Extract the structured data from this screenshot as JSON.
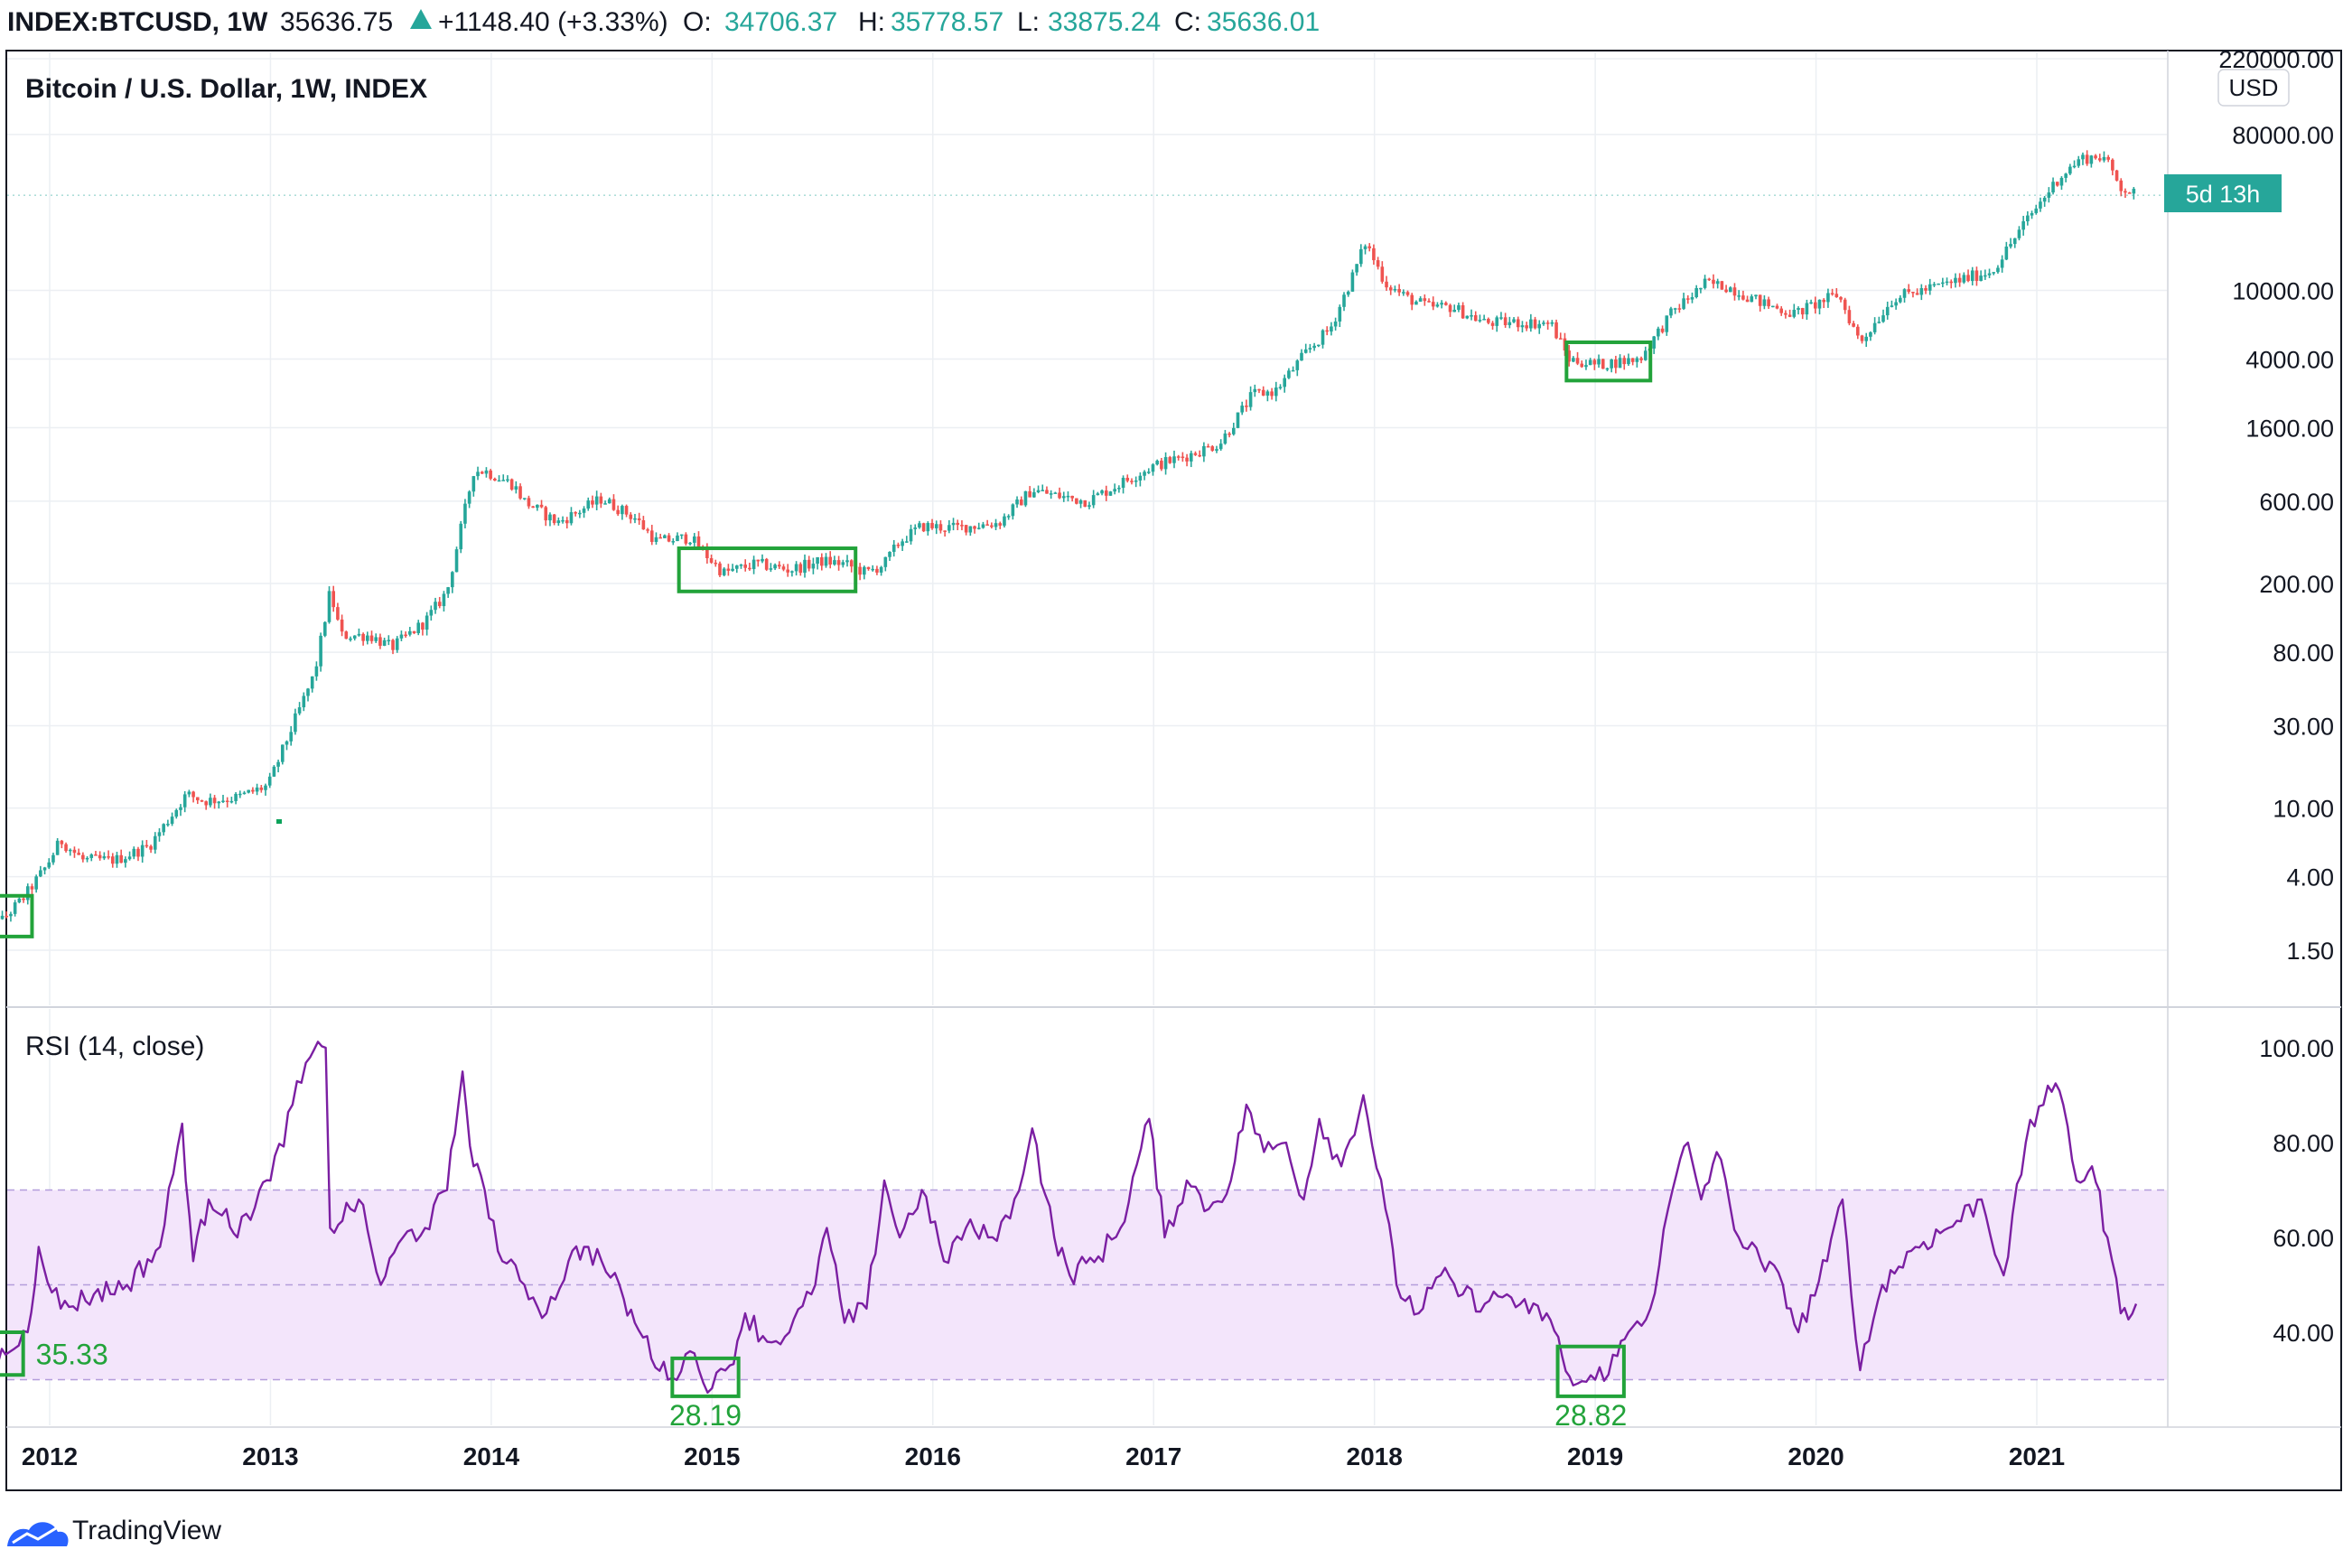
{
  "header": {
    "symbol": "INDEX:BTCUSD, 1W",
    "last": "35636.75",
    "change": "+1148.40 (+3.33%)",
    "open_label": "O:",
    "open": "34706.37",
    "high_label": "H:",
    "high": "35778.57",
    "low_label": "L:",
    "low": "33875.24",
    "close_label": "C:",
    "close": "35636.01"
  },
  "main_pane": {
    "title": "Bitcoin / U.S. Dollar, 1W, INDEX",
    "currency": "USD",
    "countdown": "5d 13h"
  },
  "rsi_pane": {
    "title": "RSI (14, close)",
    "annotations": [
      "35.33",
      "28.19",
      "28.82"
    ]
  },
  "footer": {
    "brand": "TradingView"
  },
  "colors": {
    "up": "#26a69a",
    "down": "#ef5350",
    "rsi": "#7b1fa2",
    "rsi_band": "#f3e5fb",
    "highlight": "#22a33a",
    "text": "#131722",
    "grid": "#eceff3",
    "countdown_bg": "#26a69a"
  },
  "chart_data": [
    {
      "type": "candlestick",
      "title": "Bitcoin / U.S. Dollar, 1W, INDEX",
      "y_scale": "log",
      "y_ticks": [
        "220000.00",
        "80000.00",
        "10000.00",
        "4000.00",
        "1600.00",
        "600.00",
        "200.00",
        "80.00",
        "30.00",
        "10.00",
        "4.00",
        "1.50"
      ],
      "x_ticks": [
        "2012",
        "2013",
        "2014",
        "2015",
        "2016",
        "2017",
        "2018",
        "2019",
        "2020",
        "2021"
      ],
      "grid": true,
      "price_path": [
        [
          2011.67,
          4.0
        ],
        [
          2011.78,
          2.2
        ],
        [
          2011.88,
          3.0
        ],
        [
          2011.98,
          4.5
        ],
        [
          2012.05,
          6.5
        ],
        [
          2012.15,
          5.0
        ],
        [
          2012.3,
          5.0
        ],
        [
          2012.45,
          6.0
        ],
        [
          2012.55,
          9.0
        ],
        [
          2012.62,
          12.0
        ],
        [
          2012.7,
          11.0
        ],
        [
          2012.85,
          11.5
        ],
        [
          2012.99,
          13.5
        ],
        [
          2013.1,
          30.0
        ],
        [
          2013.2,
          60.0
        ],
        [
          2013.27,
          180.0
        ],
        [
          2013.32,
          100.0
        ],
        [
          2013.45,
          100.0
        ],
        [
          2013.55,
          85.0
        ],
        [
          2013.7,
          120.0
        ],
        [
          2013.8,
          180.0
        ],
        [
          2013.92,
          900.0
        ],
        [
          2013.97,
          900.0
        ],
        [
          2014.1,
          750.0
        ],
        [
          2014.15,
          600.0
        ],
        [
          2014.3,
          450.0
        ],
        [
          2014.5,
          620.0
        ],
        [
          2014.65,
          480.0
        ],
        [
          2014.75,
          350.0
        ],
        [
          2014.9,
          370.0
        ],
        [
          2015.05,
          230.0
        ],
        [
          2015.2,
          260.0
        ],
        [
          2015.35,
          240.0
        ],
        [
          2015.5,
          270.0
        ],
        [
          2015.6,
          260.0
        ],
        [
          2015.7,
          230.0
        ],
        [
          2015.78,
          260.0
        ],
        [
          2015.85,
          350.0
        ],
        [
          2015.95,
          430.0
        ],
        [
          2016.1,
          420.0
        ],
        [
          2016.3,
          450.0
        ],
        [
          2016.45,
          700.0
        ],
        [
          2016.55,
          650.0
        ],
        [
          2016.7,
          600.0
        ],
        [
          2016.99,
          950.0
        ],
        [
          2017.15,
          1100.0
        ],
        [
          2017.3,
          1300.0
        ],
        [
          2017.45,
          2500.0
        ],
        [
          2017.55,
          2600.0
        ],
        [
          2017.7,
          4500.0
        ],
        [
          2017.8,
          6000.0
        ],
        [
          2017.9,
          12000.0
        ],
        [
          2017.96,
          19000.0
        ],
        [
          2018.05,
          11000.0
        ],
        [
          2018.15,
          9000.0
        ],
        [
          2018.25,
          8000.0
        ],
        [
          2018.35,
          8000.0
        ],
        [
          2018.5,
          6500.0
        ],
        [
          2018.65,
          6500.0
        ],
        [
          2018.8,
          6400.0
        ],
        [
          2018.88,
          4000.0
        ],
        [
          2019.0,
          3700.0
        ],
        [
          2019.2,
          4000.0
        ],
        [
          2019.35,
          7500.0
        ],
        [
          2019.5,
          11000.0
        ],
        [
          2019.6,
          10500.0
        ],
        [
          2019.75,
          8500.0
        ],
        [
          2019.9,
          7300.0
        ],
        [
          2020.1,
          9500.0
        ],
        [
          2020.2,
          5000.0
        ],
        [
          2020.35,
          9000.0
        ],
        [
          2020.6,
          11000.0
        ],
        [
          2020.8,
          13000.0
        ],
        [
          2020.95,
          25000.0
        ],
        [
          2021.1,
          45000.0
        ],
        [
          2021.2,
          58000.0
        ],
        [
          2021.3,
          60000.0
        ],
        [
          2021.38,
          40000.0
        ],
        [
          2021.45,
          35600.0
        ]
      ],
      "highlights": [
        {
          "x_range": [
            2011.74,
            2011.92
          ],
          "y_range": [
            1.8,
            3.1
          ]
        },
        {
          "x_range": [
            2014.85,
            2015.65
          ],
          "y_range": [
            180,
            320
          ]
        },
        {
          "x_range": [
            2018.87,
            2019.25
          ],
          "y_range": [
            3000,
            5000
          ]
        }
      ]
    },
    {
      "type": "line",
      "title": "RSI (14, close)",
      "ylim": [
        25,
        100
      ],
      "y_ticks": [
        "100.00",
        "80.00",
        "60.00",
        "40.00"
      ],
      "bands": {
        "upper": 70,
        "middle": 50,
        "lower": 30
      },
      "series": [
        {
          "values": [
            [
              2011.67,
              38.0
            ],
            [
              2011.75,
              35.3
            ],
            [
              2011.8,
              35.3
            ],
            [
              2011.9,
              40.0
            ],
            [
              2011.95,
              58.0
            ],
            [
              2012.05,
              45.0
            ],
            [
              2012.2,
              48.0
            ],
            [
              2012.35,
              50.0
            ],
            [
              2012.5,
              58.0
            ],
            [
              2012.6,
              84.0
            ],
            [
              2012.65,
              55.0
            ],
            [
              2012.72,
              68.0
            ],
            [
              2012.8,
              66.0
            ],
            [
              2012.85,
              60.0
            ],
            [
              2012.95,
              70.0
            ],
            [
              2013.0,
              72.0
            ],
            [
              2013.1,
              88.0
            ],
            [
              2013.18,
              98.0
            ],
            [
              2013.25,
              100.0
            ],
            [
              2013.27,
              62.0
            ],
            [
              2013.4,
              68.0
            ],
            [
              2013.5,
              50.0
            ],
            [
              2013.6,
              60.0
            ],
            [
              2013.7,
              62.0
            ],
            [
              2013.8,
              70.0
            ],
            [
              2013.87,
              95.0
            ],
            [
              2013.92,
              75.0
            ],
            [
              2013.97,
              70.0
            ],
            [
              2014.05,
              55.0
            ],
            [
              2014.15,
              50.0
            ],
            [
              2014.25,
              44.0
            ],
            [
              2014.35,
              55.0
            ],
            [
              2014.42,
              58.0
            ],
            [
              2014.5,
              55.0
            ],
            [
              2014.6,
              47.0
            ],
            [
              2014.65,
              42.0
            ],
            [
              2014.8,
              30.0
            ],
            [
              2014.9,
              36.0
            ],
            [
              2015.0,
              28.2
            ],
            [
              2015.08,
              33.0
            ],
            [
              2015.15,
              44.0
            ],
            [
              2015.25,
              38.0
            ],
            [
              2015.35,
              40.0
            ],
            [
              2015.45,
              48.0
            ],
            [
              2015.52,
              62.0
            ],
            [
              2015.6,
              42.0
            ],
            [
              2015.7,
              45.0
            ],
            [
              2015.78,
              72.0
            ],
            [
              2015.85,
              60.0
            ],
            [
              2015.95,
              70.0
            ],
            [
              2016.05,
              55.0
            ],
            [
              2016.15,
              62.0
            ],
            [
              2016.25,
              60.0
            ],
            [
              2016.35,
              64.0
            ],
            [
              2016.45,
              83.0
            ],
            [
              2016.55,
              60.0
            ],
            [
              2016.62,
              52.0
            ],
            [
              2016.75,
              56.0
            ],
            [
              2016.85,
              62.0
            ],
            [
              2016.98,
              85.0
            ],
            [
              2017.05,
              60.0
            ],
            [
              2017.15,
              72.0
            ],
            [
              2017.25,
              66.0
            ],
            [
              2017.35,
              72.0
            ],
            [
              2017.42,
              88.0
            ],
            [
              2017.5,
              78.0
            ],
            [
              2017.6,
              80.0
            ],
            [
              2017.68,
              68.0
            ],
            [
              2017.75,
              85.0
            ],
            [
              2017.85,
              75.0
            ],
            [
              2017.95,
              90.0
            ],
            [
              2018.05,
              66.0
            ],
            [
              2018.1,
              50.0
            ],
            [
              2018.2,
              44.0
            ],
            [
              2018.3,
              52.0
            ],
            [
              2018.4,
              48.0
            ],
            [
              2018.5,
              46.0
            ],
            [
              2018.6,
              48.0
            ],
            [
              2018.7,
              44.0
            ],
            [
              2018.78,
              44.0
            ],
            [
              2018.85,
              35.0
            ],
            [
              2018.9,
              28.8
            ],
            [
              2019.0,
              30.0
            ],
            [
              2019.1,
              35.0
            ],
            [
              2019.15,
              40.0
            ],
            [
              2019.25,
              45.0
            ],
            [
              2019.35,
              70.0
            ],
            [
              2019.42,
              80.0
            ],
            [
              2019.48,
              68.0
            ],
            [
              2019.55,
              78.0
            ],
            [
              2019.65,
              60.0
            ],
            [
              2019.75,
              55.0
            ],
            [
              2019.85,
              50.0
            ],
            [
              2019.92,
              40.0
            ],
            [
              2020.05,
              55.0
            ],
            [
              2020.12,
              68.0
            ],
            [
              2020.2,
              32.0
            ],
            [
              2020.3,
              50.0
            ],
            [
              2020.45,
              58.0
            ],
            [
              2020.6,
              62.0
            ],
            [
              2020.75,
              68.0
            ],
            [
              2020.85,
              52.0
            ],
            [
              2020.95,
              80.0
            ],
            [
              2021.05,
              92.0
            ],
            [
              2021.12,
              88.0
            ],
            [
              2021.18,
              72.0
            ],
            [
              2021.25,
              75.0
            ],
            [
              2021.32,
              60.0
            ],
            [
              2021.38,
              44.0
            ],
            [
              2021.45,
              46.0
            ]
          ]
        }
      ],
      "highlights": [
        {
          "x_range": [
            2011.7,
            2011.88
          ],
          "y_range": [
            31,
            40
          ],
          "label": "35.33"
        },
        {
          "x_range": [
            2014.82,
            2015.12
          ],
          "y_range": [
            26.5,
            34.5
          ],
          "label": "28.19"
        },
        {
          "x_range": [
            2018.83,
            2019.13
          ],
          "y_range": [
            26.5,
            37
          ],
          "label": "28.82"
        }
      ]
    }
  ]
}
